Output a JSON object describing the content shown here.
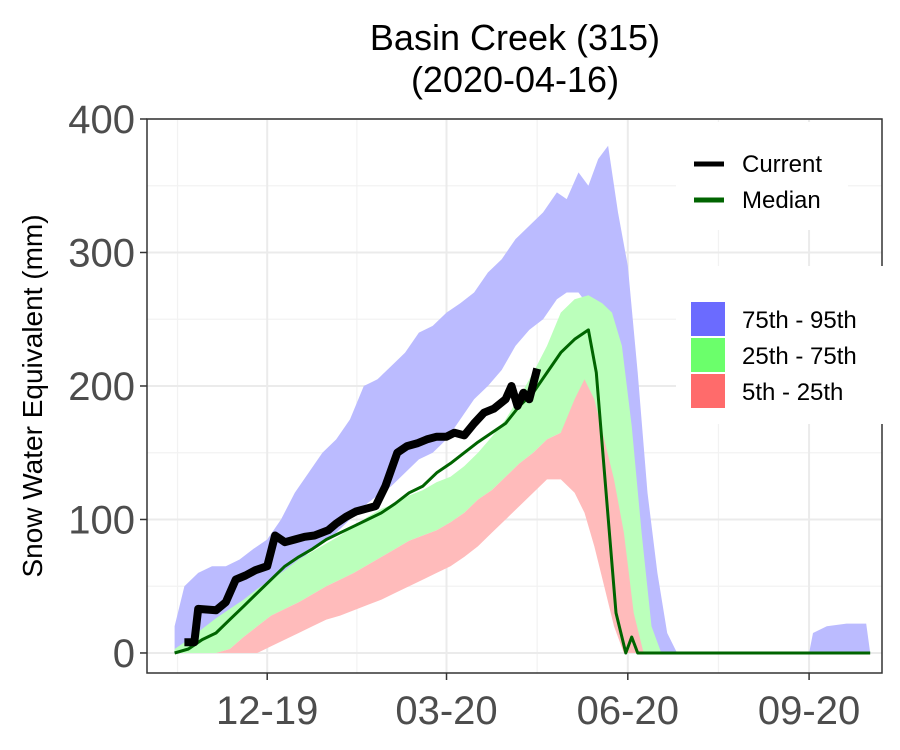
{
  "chart_data": {
    "type": "area",
    "title": "Basin Creek (315)",
    "subtitle": "(2020-04-16)",
    "xlabel": "",
    "ylabel": "Snow Water Equivalent (mm)",
    "ylim": [
      -15,
      400
    ],
    "xlim": [
      "2019-10-01",
      "2020-10-08"
    ],
    "yticks": [
      0,
      100,
      200,
      300,
      400
    ],
    "yticklabels": [
      "0",
      "100",
      "200",
      "300",
      "400"
    ],
    "xticks": [
      "2019-12-01",
      "2020-03-01",
      "2020-06-01",
      "2020-09-01"
    ],
    "xticklabels": [
      "12-19",
      "03-20",
      "06-20",
      "09-20"
    ],
    "grid": true,
    "legend_lines": {
      "placement": "top-right",
      "entries": [
        {
          "label": "Current",
          "color": "#000000"
        },
        {
          "label": "Median",
          "color": "#006400"
        }
      ]
    },
    "legend_bands": {
      "placement": "right",
      "entries": [
        {
          "label": "75th - 95th",
          "color": "#6b6bff"
        },
        {
          "label": "25th - 75th",
          "color": "#6bff6b"
        },
        {
          "label": "5th - 25th",
          "color": "#ff6b6b"
        }
      ]
    },
    "colors": {
      "band_75_95": "#bbbbff",
      "band_25_75": "#bbffbb",
      "band_5_25": "#ffbbbb",
      "current": "#000000",
      "median": "#006400"
    },
    "series": [
      {
        "name": "75th - 95th",
        "x": [
          "2019-10-15",
          "2019-10-20",
          "2019-10-27",
          "2019-11-03",
          "2019-11-10",
          "2019-11-17",
          "2019-11-24",
          "2019-12-01",
          "2019-12-08",
          "2019-12-15",
          "2019-12-22",
          "2019-12-29",
          "2020-01-05",
          "2020-01-12",
          "2020-01-19",
          "2020-01-26",
          "2020-02-02",
          "2020-02-09",
          "2020-02-16",
          "2020-02-23",
          "2020-03-01",
          "2020-03-08",
          "2020-03-15",
          "2020-03-22",
          "2020-03-29",
          "2020-04-05",
          "2020-04-12",
          "2020-04-19",
          "2020-04-26",
          "2020-05-01",
          "2020-05-07",
          "2020-05-12",
          "2020-05-17",
          "2020-05-22",
          "2020-05-27",
          "2020-06-01",
          "2020-06-06",
          "2020-06-11",
          "2020-06-16",
          "2020-06-21",
          "2020-06-26",
          "2020-07-01",
          "2020-07-05",
          "2020-09-01",
          "2020-09-03",
          "2020-09-10",
          "2020-09-20",
          "2020-09-30",
          "2020-10-02"
        ],
        "upper": [
          20,
          50,
          60,
          65,
          65,
          70,
          78,
          85,
          100,
          120,
          135,
          150,
          160,
          175,
          200,
          205,
          215,
          225,
          240,
          245,
          255,
          262,
          270,
          285,
          295,
          310,
          320,
          330,
          345,
          340,
          360,
          350,
          370,
          380,
          330,
          290,
          210,
          120,
          60,
          15,
          0,
          0,
          0,
          0,
          15,
          20,
          22,
          22,
          0
        ],
        "lower": [
          0,
          5,
          12,
          20,
          25,
          30,
          38,
          45,
          55,
          65,
          75,
          82,
          90,
          100,
          110,
          118,
          125,
          135,
          145,
          150,
          160,
          175,
          190,
          200,
          212,
          230,
          242,
          250,
          265,
          270,
          270,
          260,
          255,
          225,
          170,
          110,
          40,
          5,
          0,
          0,
          0,
          0,
          0,
          0,
          0,
          0,
          0,
          0,
          0
        ]
      },
      {
        "name": "25th - 75th",
        "x": [
          "2019-10-15",
          "2019-10-22",
          "2019-10-29",
          "2019-11-05",
          "2019-11-12",
          "2019-11-19",
          "2019-11-26",
          "2019-12-03",
          "2019-12-10",
          "2019-12-17",
          "2019-12-24",
          "2019-12-31",
          "2020-01-07",
          "2020-01-14",
          "2020-01-21",
          "2020-01-28",
          "2020-02-04",
          "2020-02-11",
          "2020-02-18",
          "2020-02-25",
          "2020-03-03",
          "2020-03-10",
          "2020-03-17",
          "2020-03-24",
          "2020-03-31",
          "2020-04-07",
          "2020-04-14",
          "2020-04-21",
          "2020-04-28",
          "2020-05-05",
          "2020-05-12",
          "2020-05-19",
          "2020-05-24",
          "2020-05-29",
          "2020-06-03",
          "2020-06-08",
          "2020-06-13",
          "2020-06-18"
        ],
        "upper": [
          3,
          10,
          18,
          26,
          33,
          40,
          48,
          55,
          62,
          70,
          76,
          82,
          88,
          95,
          102,
          108,
          112,
          118,
          122,
          128,
          132,
          140,
          150,
          162,
          175,
          192,
          210,
          230,
          255,
          265,
          268,
          262,
          255,
          230,
          170,
          90,
          20,
          0
        ],
        "lower": [
          0,
          0,
          0,
          0,
          3,
          12,
          20,
          28,
          33,
          38,
          44,
          50,
          55,
          60,
          66,
          72,
          78,
          84,
          88,
          92,
          98,
          105,
          115,
          122,
          132,
          142,
          150,
          160,
          165,
          175,
          168,
          135,
          95,
          50,
          10,
          0,
          0,
          0
        ]
      },
      {
        "name": "5th - 25th",
        "x": [
          "2019-10-15",
          "2019-10-22",
          "2019-10-29",
          "2019-11-05",
          "2019-11-12",
          "2019-11-19",
          "2019-11-26",
          "2019-12-03",
          "2019-12-10",
          "2019-12-17",
          "2019-12-24",
          "2019-12-31",
          "2020-01-07",
          "2020-01-14",
          "2020-01-21",
          "2020-01-28",
          "2020-02-04",
          "2020-02-11",
          "2020-02-18",
          "2020-02-25",
          "2020-03-03",
          "2020-03-10",
          "2020-03-17",
          "2020-03-24",
          "2020-03-31",
          "2020-04-07",
          "2020-04-14",
          "2020-04-21",
          "2020-04-28",
          "2020-05-05",
          "2020-05-10",
          "2020-05-15",
          "2020-05-20",
          "2020-05-25",
          "2020-05-30",
          "2020-06-04",
          "2020-06-09"
        ],
        "upper": [
          0,
          0,
          0,
          0,
          3,
          12,
          20,
          28,
          33,
          38,
          44,
          50,
          55,
          60,
          66,
          72,
          78,
          84,
          88,
          92,
          98,
          105,
          115,
          122,
          132,
          142,
          150,
          160,
          165,
          190,
          205,
          190,
          160,
          130,
          90,
          30,
          0
        ],
        "lower": [
          0,
          0,
          0,
          0,
          0,
          0,
          0,
          5,
          10,
          15,
          20,
          25,
          28,
          32,
          36,
          40,
          45,
          50,
          55,
          60,
          65,
          72,
          80,
          90,
          100,
          110,
          120,
          130,
          130,
          120,
          105,
          80,
          50,
          20,
          0,
          0,
          0
        ]
      },
      {
        "name": "Current",
        "x": [
          "2019-10-20",
          "2019-10-25",
          "2019-10-27",
          "2019-11-05",
          "2019-11-10",
          "2019-11-15",
          "2019-11-20",
          "2019-11-25",
          "2019-12-01",
          "2019-12-05",
          "2019-12-10",
          "2019-12-15",
          "2019-12-20",
          "2019-12-25",
          "2020-01-01",
          "2020-01-05",
          "2020-01-10",
          "2020-01-15",
          "2020-01-20",
          "2020-01-25",
          "2020-01-30",
          "2020-02-05",
          "2020-02-10",
          "2020-02-15",
          "2020-02-20",
          "2020-02-25",
          "2020-03-01",
          "2020-03-05",
          "2020-03-10",
          "2020-03-15",
          "2020-03-20",
          "2020-03-25",
          "2020-03-31",
          "2020-04-03",
          "2020-04-06",
          "2020-04-09",
          "2020-04-12",
          "2020-04-16"
        ],
        "values": [
          8,
          8,
          33,
          32,
          38,
          55,
          58,
          62,
          65,
          88,
          83,
          85,
          87,
          88,
          92,
          97,
          102,
          106,
          108,
          110,
          125,
          150,
          155,
          157,
          160,
          162,
          162,
          165,
          163,
          172,
          180,
          183,
          190,
          200,
          185,
          195,
          190,
          213
        ]
      },
      {
        "name": "Median",
        "x": [
          "2019-10-15",
          "2019-10-22",
          "2019-10-29",
          "2019-11-05",
          "2019-11-12",
          "2019-11-19",
          "2019-11-26",
          "2019-12-03",
          "2019-12-10",
          "2019-12-17",
          "2019-12-24",
          "2019-12-31",
          "2020-01-07",
          "2020-01-14",
          "2020-01-21",
          "2020-01-28",
          "2020-02-04",
          "2020-02-11",
          "2020-02-18",
          "2020-02-25",
          "2020-03-03",
          "2020-03-10",
          "2020-03-17",
          "2020-03-24",
          "2020-03-31",
          "2020-04-07",
          "2020-04-14",
          "2020-04-21",
          "2020-04-28",
          "2020-05-05",
          "2020-05-12",
          "2020-05-16",
          "2020-05-21",
          "2020-05-26",
          "2020-05-31",
          "2020-06-03",
          "2020-06-06",
          "2020-06-10",
          "2020-06-15",
          "2020-10-02"
        ],
        "values": [
          0,
          3,
          10,
          15,
          25,
          35,
          45,
          55,
          65,
          72,
          78,
          85,
          90,
          95,
          100,
          105,
          112,
          120,
          125,
          135,
          142,
          150,
          158,
          165,
          172,
          185,
          195,
          210,
          225,
          235,
          242,
          210,
          120,
          30,
          0,
          12,
          0,
          0,
          0,
          0
        ]
      }
    ]
  }
}
